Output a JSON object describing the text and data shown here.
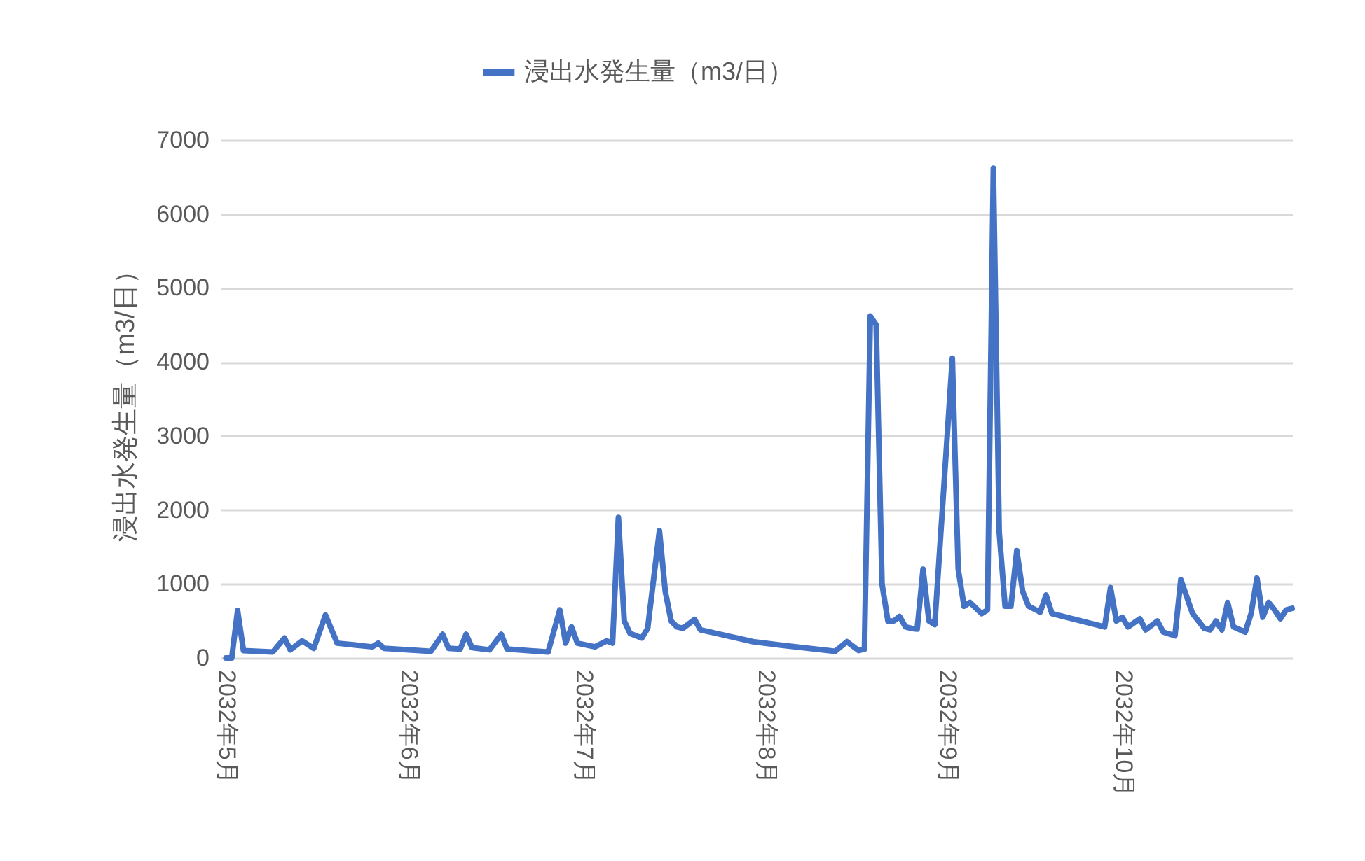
{
  "chart_data": {
    "type": "line",
    "ylabel": "浸出水発生量（m3/日）",
    "legend": "top",
    "grid": "y",
    "line_style": "solid",
    "xlim": [
      "2032-04-30",
      "2032-10-30"
    ],
    "xticks": [
      {
        "value": "2032-05-01",
        "label": "2032年5月"
      },
      {
        "value": "2032-06-01",
        "label": "2032年6月"
      },
      {
        "value": "2032-07-01",
        "label": "2032年7月"
      },
      {
        "value": "2032-08-01",
        "label": "2032年8月"
      },
      {
        "value": "2032-09-01",
        "label": "2032年9月"
      },
      {
        "value": "2032-10-01",
        "label": "2032年10月"
      }
    ],
    "ylim": [
      0,
      7000
    ],
    "yticks": [
      0,
      1000,
      2000,
      3000,
      4000,
      5000,
      6000,
      7000
    ],
    "x": [
      "2032-05-01",
      "2032-05-02",
      "2032-05-03",
      "2032-05-04",
      "2032-05-09",
      "2032-05-11",
      "2032-05-12",
      "2032-05-14",
      "2032-05-16",
      "2032-05-18",
      "2032-05-20",
      "2032-05-26",
      "2032-05-27",
      "2032-05-28",
      "2032-06-05",
      "2032-06-07",
      "2032-06-08",
      "2032-06-10",
      "2032-06-11",
      "2032-06-12",
      "2032-06-15",
      "2032-06-17",
      "2032-06-18",
      "2032-06-25",
      "2032-06-27",
      "2032-06-28",
      "2032-06-29",
      "2032-06-30",
      "2032-07-03",
      "2032-07-05",
      "2032-07-06",
      "2032-07-07",
      "2032-07-08",
      "2032-07-09",
      "2032-07-11",
      "2032-07-12",
      "2032-07-14",
      "2032-07-15",
      "2032-07-16",
      "2032-07-17",
      "2032-07-18",
      "2032-07-20",
      "2032-07-21",
      "2032-07-30",
      "2032-08-04",
      "2032-08-13",
      "2032-08-15",
      "2032-08-17",
      "2032-08-18",
      "2032-08-19",
      "2032-08-20",
      "2032-08-21",
      "2032-08-22",
      "2032-08-23",
      "2032-08-24",
      "2032-08-25",
      "2032-08-26",
      "2032-08-27",
      "2032-08-28",
      "2032-08-29",
      "2032-08-30",
      "2032-09-02",
      "2032-09-03",
      "2032-09-04",
      "2032-09-05",
      "2032-09-07",
      "2032-09-08",
      "2032-09-09",
      "2032-09-10",
      "2032-09-11",
      "2032-09-12",
      "2032-09-13",
      "2032-09-14",
      "2032-09-15",
      "2032-09-17",
      "2032-09-18",
      "2032-09-19",
      "2032-09-28",
      "2032-09-29",
      "2032-09-30",
      "2032-10-01",
      "2032-10-02",
      "2032-10-04",
      "2032-10-05",
      "2032-10-07",
      "2032-10-08",
      "2032-10-10",
      "2032-10-11",
      "2032-10-13",
      "2032-10-15",
      "2032-10-16",
      "2032-10-17",
      "2032-10-18",
      "2032-10-19",
      "2032-10-20",
      "2032-10-22",
      "2032-10-23",
      "2032-10-24",
      "2032-10-25",
      "2032-10-26",
      "2032-10-27",
      "2032-10-28",
      "2032-10-29",
      "2032-10-30"
    ],
    "series": [
      {
        "name": "浸出水発生量（m3/日）",
        "color": "#4472c4",
        "values": [
          0,
          0,
          640,
          100,
          80,
          270,
          110,
          230,
          130,
          580,
          200,
          150,
          200,
          130,
          90,
          320,
          130,
          120,
          320,
          140,
          110,
          320,
          120,
          80,
          650,
          200,
          420,
          200,
          150,
          230,
          200,
          1900,
          500,
          330,
          270,
          400,
          1720,
          900,
          500,
          420,
          400,
          520,
          380,
          220,
          170,
          90,
          220,
          100,
          120,
          4620,
          4500,
          1000,
          500,
          500,
          560,
          420,
          400,
          390,
          1200,
          500,
          450,
          4050,
          1200,
          700,
          750,
          600,
          650,
          6620,
          1700,
          700,
          700,
          1450,
          900,
          700,
          620,
          850,
          600,
          420,
          950,
          500,
          550,
          420,
          530,
          380,
          500,
          350,
          300,
          1060,
          600,
          400,
          380,
          500,
          380,
          750,
          420,
          350,
          600,
          1080,
          550,
          750,
          650,
          530,
          650,
          670
        ]
      }
    ]
  }
}
